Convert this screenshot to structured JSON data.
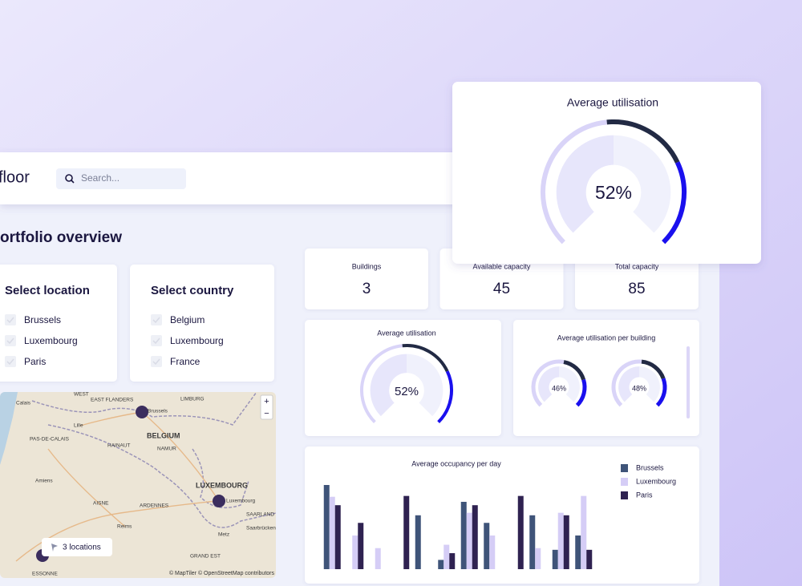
{
  "header": {
    "logo": "floor",
    "search_placeholder": "Search..."
  },
  "page_title": "ortfolio overview",
  "filters": [
    {
      "title": "Select location",
      "options": [
        "Brussels",
        "Luxembourg",
        "Paris"
      ]
    },
    {
      "title": "Select country",
      "options": [
        "Belgium",
        "Luxembourg",
        "France"
      ]
    }
  ],
  "map": {
    "labels": [
      "WEST",
      "EAST FLANDERS",
      "LIMBURG",
      "Calais",
      "Brussels",
      "Lille",
      "BELGIUM",
      "PAS-DE-CALAIS",
      "HAINAUT",
      "NAMUR",
      "Amiens",
      "LUXEMBOURG",
      "Luxembourg",
      "ARDENNES",
      "AISNE",
      "Reims",
      "SAARLAND",
      "Saarbrücken",
      "Metz",
      "GRAND EST",
      "ESSONNE"
    ],
    "zoom_in": "+",
    "zoom_out": "−",
    "locations_button": "3 locations",
    "attribution": "© MapTiler © OpenStreetMap contributors"
  },
  "kpis": [
    {
      "label": "Buildings",
      "value": 3
    },
    {
      "label": "Available capacity",
      "value": 45
    },
    {
      "label": "Total capacity",
      "value": 85
    }
  ],
  "utilisation": {
    "title": "Average utilisation",
    "value": 52,
    "value_label": "52%"
  },
  "popup": {
    "title": "Average utilisation",
    "value": 52,
    "value_label": "52%"
  },
  "per_building": {
    "title": "Average utilisation per building",
    "values": [
      46,
      48
    ],
    "value_labels": [
      "46%",
      "48%"
    ]
  },
  "chart_data": {
    "type": "bar",
    "title": "Average occupancy per day",
    "categories": [
      null,
      null,
      null,
      null,
      null,
      null,
      null,
      null,
      null,
      null,
      null,
      null
    ],
    "series": [
      {
        "name": "Brussels",
        "color": "#3f5479",
        "values": [
          100,
          0,
          0,
          0,
          64,
          11,
          80,
          55,
          0,
          64,
          23,
          40
        ]
      },
      {
        "name": "Luxembourg",
        "color": "#d5cdf6",
        "values": [
          86,
          40,
          25,
          0,
          0,
          29,
          67,
          40,
          0,
          25,
          67,
          87
        ]
      },
      {
        "name": "Paris",
        "color": "#2f2251",
        "values": [
          76,
          55,
          0,
          87,
          0,
          19,
          76,
          0,
          87,
          0,
          64,
          23
        ]
      }
    ]
  }
}
